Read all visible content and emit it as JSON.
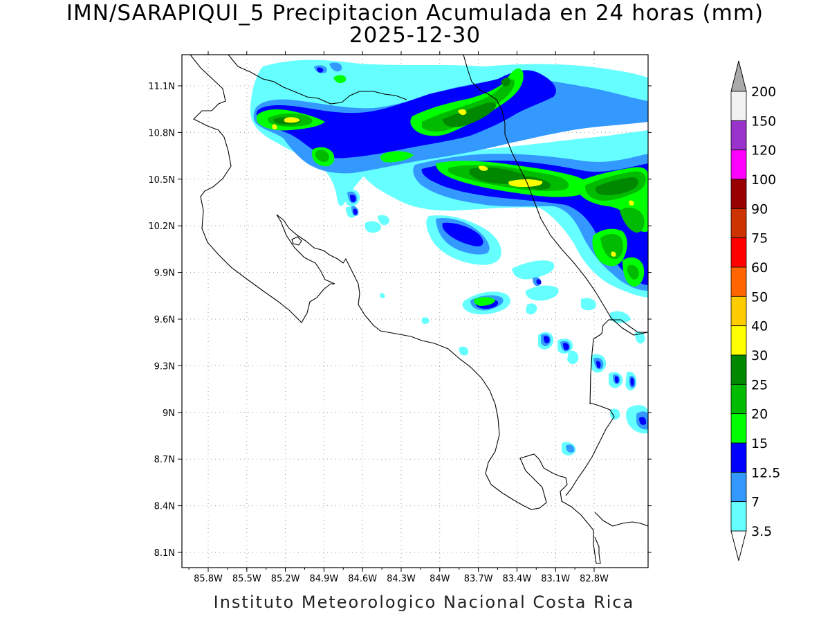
{
  "title": "IMN/SARAPIQUI_5 Precipitacion Acumulada en 24 horas (mm)",
  "date": "2025-12-30",
  "credit": "Instituto Meteorologico Nacional Costa Rica",
  "map": {
    "lon_range": [
      -86.0,
      -83.0
    ],
    "lat_range": [
      8.0,
      11.3
    ],
    "lon_ticks": [
      "85.8W",
      "85.5W",
      "85.2W",
      "84.9W",
      "84.6W",
      "84.3W",
      "84W",
      "83.7W",
      "83.4W",
      "83.1W",
      "82.8W"
    ],
    "lat_ticks": [
      "11.1N",
      "10.8N",
      "10.5N",
      "10.2N",
      "9.9N",
      "9.6N",
      "9.3N",
      "9N",
      "8.7N",
      "8.4N",
      "8.1N"
    ],
    "gridlines": "dotted"
  },
  "legend": {
    "levels": [
      "200",
      "150",
      "120",
      "100",
      "90",
      "75",
      "60",
      "50",
      "40",
      "30",
      "25",
      "20",
      "15",
      "12.5",
      "7",
      "3.5"
    ],
    "colors": [
      "#f2f2f2",
      "#9933cc",
      "#ff00ff",
      "#990000",
      "#cc3300",
      "#ff0000",
      "#ff6600",
      "#ffcc00",
      "#ffff00",
      "#008800",
      "#00bb00",
      "#00ff00",
      "#0000ff",
      "#3399ff",
      "#66ffff"
    ],
    "over_color": "#aaaaaa",
    "under_color": "#ffffff"
  },
  "colors": {
    "c3_5": "#66ffff",
    "c7": "#3399ff",
    "c12_5": "#0000ff",
    "c15": "#00ff00",
    "c20": "#00bb00",
    "c25": "#008800",
    "c30": "#ffff00"
  }
}
